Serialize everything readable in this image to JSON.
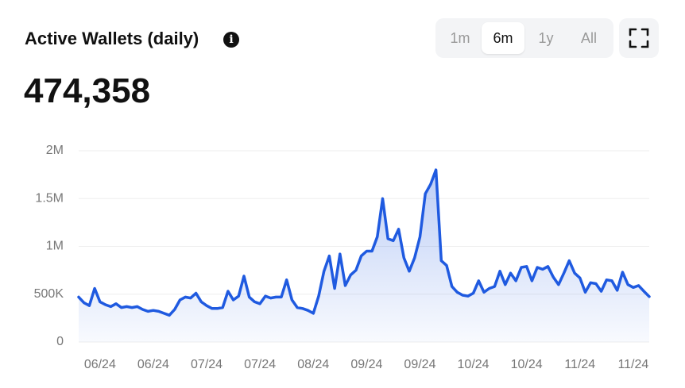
{
  "header": {
    "title": "Active Wallets (daily)",
    "value": "474,358",
    "ranges": [
      "1m",
      "6m",
      "1y",
      "All"
    ],
    "selected_range": 1
  },
  "chart_data": {
    "type": "line",
    "categories": [
      null,
      null,
      null,
      null,
      "06/24",
      null,
      null,
      null,
      null,
      null,
      null,
      null,
      null,
      null,
      "06/24",
      null,
      null,
      null,
      null,
      null,
      null,
      null,
      null,
      null,
      "07/24",
      null,
      null,
      null,
      null,
      null,
      null,
      null,
      null,
      null,
      "07/24",
      null,
      null,
      null,
      null,
      null,
      null,
      null,
      null,
      null,
      "08/24",
      null,
      null,
      null,
      null,
      null,
      null,
      null,
      null,
      null,
      "09/24",
      null,
      null,
      null,
      null,
      null,
      null,
      null,
      null,
      null,
      "09/24",
      null,
      null,
      null,
      null,
      null,
      null,
      null,
      null,
      null,
      "10/24",
      null,
      null,
      null,
      null,
      null,
      null,
      null,
      null,
      null,
      "10/24",
      null,
      null,
      null,
      null,
      null,
      null,
      null,
      null,
      null,
      "11/24",
      null,
      null,
      null,
      null,
      null,
      null,
      null,
      null,
      null,
      "11/24",
      null,
      null,
      null
    ],
    "series": [
      {
        "color": "#1f5ae0",
        "values": [
          470000,
          410000,
          380000,
          560000,
          420000,
          390000,
          370000,
          400000,
          360000,
          370000,
          360000,
          370000,
          340000,
          320000,
          330000,
          320000,
          300000,
          280000,
          340000,
          440000,
          470000,
          460000,
          510000,
          420000,
          380000,
          350000,
          350000,
          360000,
          530000,
          440000,
          480000,
          690000,
          470000,
          420000,
          400000,
          480000,
          460000,
          470000,
          470000,
          650000,
          440000,
          360000,
          350000,
          330000,
          300000,
          480000,
          740000,
          900000,
          560000,
          920000,
          590000,
          700000,
          750000,
          900000,
          950000,
          950000,
          1100000,
          1500000,
          1080000,
          1060000,
          1180000,
          880000,
          740000,
          880000,
          1100000,
          1550000,
          1650000,
          1800000,
          850000,
          800000,
          580000,
          520000,
          490000,
          480000,
          510000,
          640000,
          520000,
          560000,
          580000,
          740000,
          600000,
          720000,
          640000,
          780000,
          790000,
          640000,
          780000,
          760000,
          790000,
          680000,
          600000,
          720000,
          850000,
          720000,
          670000,
          520000,
          620000,
          610000,
          530000,
          650000,
          640000,
          540000,
          730000,
          600000,
          570000,
          590000,
          530000,
          474358
        ]
      }
    ],
    "ylim": [
      0,
      2000000
    ],
    "yticks": [
      0,
      {
        "value": 500000,
        "label": "500K"
      },
      {
        "value": 1000000,
        "label": "1M"
      },
      {
        "value": 1500000,
        "label": "1.5M"
      },
      {
        "value": 2000000,
        "label": "2M"
      }
    ],
    "grid": true
  }
}
